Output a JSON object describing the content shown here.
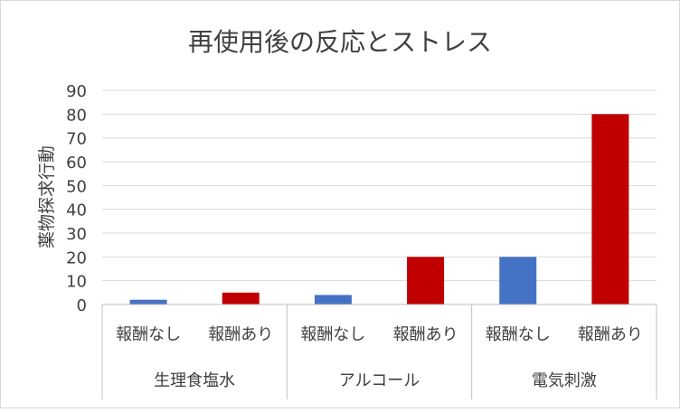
{
  "chart_data": {
    "type": "bar",
    "title": "再使用後の反応とストレス",
    "ylabel": "薬物探求行動",
    "xlabel": "",
    "ylim": [
      0,
      90
    ],
    "yticks": [
      0,
      10,
      20,
      30,
      40,
      50,
      60,
      70,
      80,
      90
    ],
    "grid": true,
    "legend": "none",
    "groups": [
      {
        "label": "生理食塩水",
        "bars": [
          {
            "label": "報酬なし",
            "value": 2,
            "color": "#4472C4"
          },
          {
            "label": "報酬あり",
            "value": 5,
            "color": "#C00000"
          }
        ]
      },
      {
        "label": "アルコール",
        "bars": [
          {
            "label": "報酬なし",
            "value": 4,
            "color": "#4472C4"
          },
          {
            "label": "報酬あり",
            "value": 20,
            "color": "#C00000"
          }
        ]
      },
      {
        "label": "電気刺激",
        "bars": [
          {
            "label": "報酬なし",
            "value": 20,
            "color": "#4472C4"
          },
          {
            "label": "報酬あり",
            "value": 80,
            "color": "#C00000"
          }
        ]
      }
    ],
    "colors": {
      "no_reward": "#4472C4",
      "reward": "#C00000",
      "grid": "#D9D9D9",
      "axis": "#BFBFBF",
      "text": "#404040"
    }
  }
}
